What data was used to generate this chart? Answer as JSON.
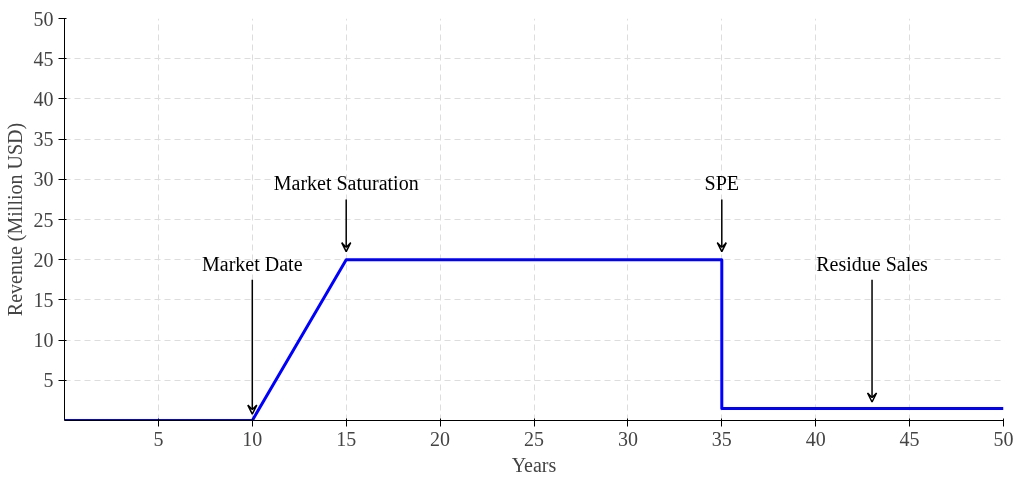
{
  "chart_data": {
    "type": "line",
    "xlabel": "Years",
    "ylabel": "Revenue (Million USD)",
    "x": [
      0,
      10,
      15,
      35,
      35,
      43,
      50
    ],
    "series": [
      {
        "color": "#0000ff",
        "values": [
          0,
          0,
          20,
          20,
          1.5,
          1.5,
          1.5
        ]
      }
    ],
    "xlim": [
      0,
      50
    ],
    "ylim": [
      0,
      50
    ],
    "xticks": [
      5,
      10,
      15,
      20,
      25,
      30,
      35,
      40,
      45,
      50
    ],
    "yticks": [
      5,
      10,
      15,
      20,
      25,
      30,
      35,
      40,
      45,
      50
    ],
    "grid": true,
    "marker": "none",
    "line_style": "solid",
    "annotations": [
      {
        "text": "Market Date",
        "x": 10,
        "y": 0
      },
      {
        "text": "Market Saturation",
        "x": 15,
        "y": 20
      },
      {
        "text": "SPE",
        "x": 35,
        "y": 20
      },
      {
        "text": "Residue Sales",
        "x": 43,
        "y": 1.5
      }
    ]
  }
}
